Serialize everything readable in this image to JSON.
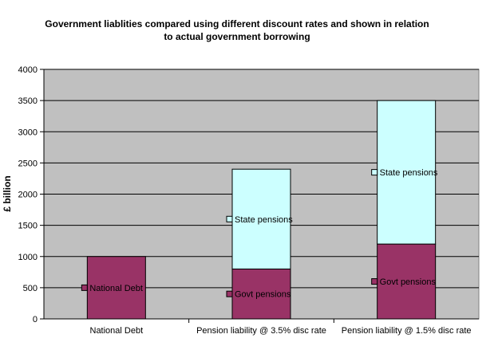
{
  "chart_data": {
    "type": "bar",
    "stacked": true,
    "title_line1": "Government liablities compared using different discount rates and shown in relation",
    "title_line2": "to actual government borrowing",
    "ylabel": "£ billion",
    "xlabel": "",
    "ylim": [
      0,
      4000
    ],
    "yticks": [
      0,
      500,
      1000,
      1500,
      2000,
      2500,
      3000,
      3500,
      4000
    ],
    "grid": "horizontal",
    "legend": "none",
    "categories": [
      "National Debt",
      "Pension liability @ 3.5% disc rate",
      "Pension liability @ 1.5% disc rate"
    ],
    "series": [
      {
        "values": [
          1000,
          800,
          1200
        ],
        "color": "#993366",
        "labels": [
          "National Debt",
          "Govt  pensions",
          "Govt pensions"
        ]
      },
      {
        "values": [
          0,
          1600,
          2300
        ],
        "color": "#ccffff",
        "labels": [
          "",
          "State pensions",
          "State pensions"
        ]
      }
    ],
    "plot_background": "#c0c0c0"
  }
}
